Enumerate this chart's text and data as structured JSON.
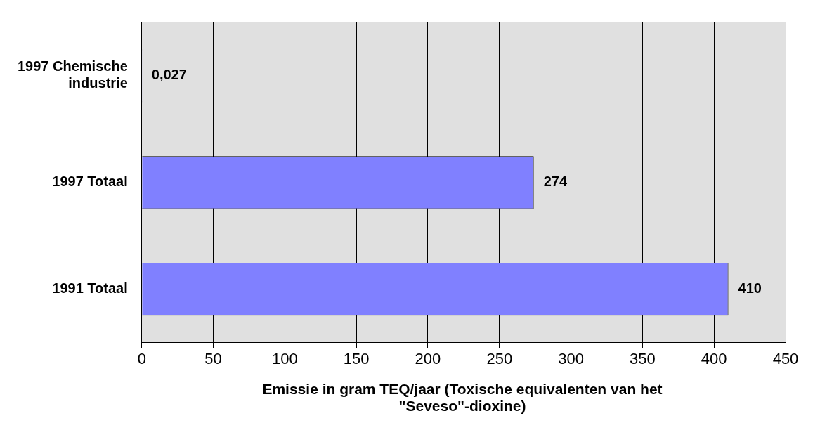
{
  "chart_data": {
    "type": "bar",
    "orientation": "horizontal",
    "categories": [
      "1997 Chemische industrie",
      "1997 Totaal",
      "1991 Totaal"
    ],
    "values": [
      0.027,
      274,
      410
    ],
    "color": "#8080ff",
    "value_labels": [
      "0,027",
      "274",
      "410"
    ],
    "xlim": [
      0,
      450
    ],
    "xticks": [
      0,
      50,
      100,
      150,
      200,
      250,
      300,
      350,
      400,
      450
    ],
    "grid": "x",
    "legend": false,
    "xlabel": "Emissie in gram TEQ/jaar (Toxische equivalenten van het \"Seveso\"-dioxine)"
  }
}
